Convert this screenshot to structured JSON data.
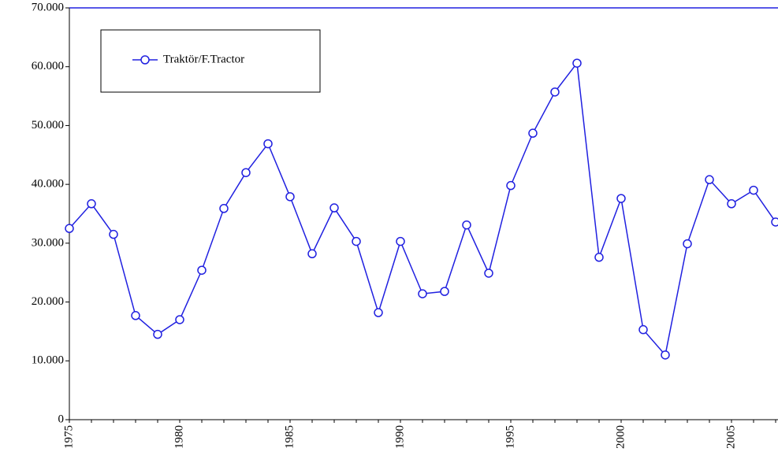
{
  "chart_data": {
    "type": "line",
    "x": [
      1975,
      1976,
      1977,
      1978,
      1979,
      1980,
      1981,
      1982,
      1983,
      1984,
      1985,
      1986,
      1987,
      1988,
      1989,
      1990,
      1991,
      1992,
      1993,
      1994,
      1995,
      1996,
      1997,
      1998,
      1999,
      2000,
      2001,
      2002,
      2003,
      2004,
      2005,
      2006,
      2007
    ],
    "series": [
      {
        "name": "Traktör/F.Tractor",
        "color": "#2020e0",
        "values": [
          32500,
          36700,
          31500,
          17700,
          14500,
          17000,
          25400,
          35900,
          42000,
          46900,
          37900,
          28200,
          36000,
          30300,
          18200,
          30300,
          21400,
          21800,
          33100,
          24900,
          39800,
          48700,
          55700,
          60600,
          27600,
          37600,
          15300,
          11000,
          29900,
          40800,
          36700,
          39000,
          33600
        ]
      }
    ],
    "xlim": [
      1975,
      2007
    ],
    "xticks": [
      1975,
      1980,
      1985,
      1990,
      1995,
      2000,
      2005
    ],
    "ylim": [
      0,
      70000
    ],
    "yticks": [
      0,
      {
        "value": 10000,
        "label": "10.000"
      },
      {
        "value": 20000,
        "label": "20.000"
      },
      {
        "value": 30000,
        "label": "30.000"
      },
      {
        "value": 40000,
        "label": "40.000"
      },
      {
        "value": 50000,
        "label": "50.000"
      },
      {
        "value": 60000,
        "label": "60.000"
      },
      {
        "value": 70000,
        "label": "70.000"
      }
    ],
    "legend": "top-left"
  }
}
